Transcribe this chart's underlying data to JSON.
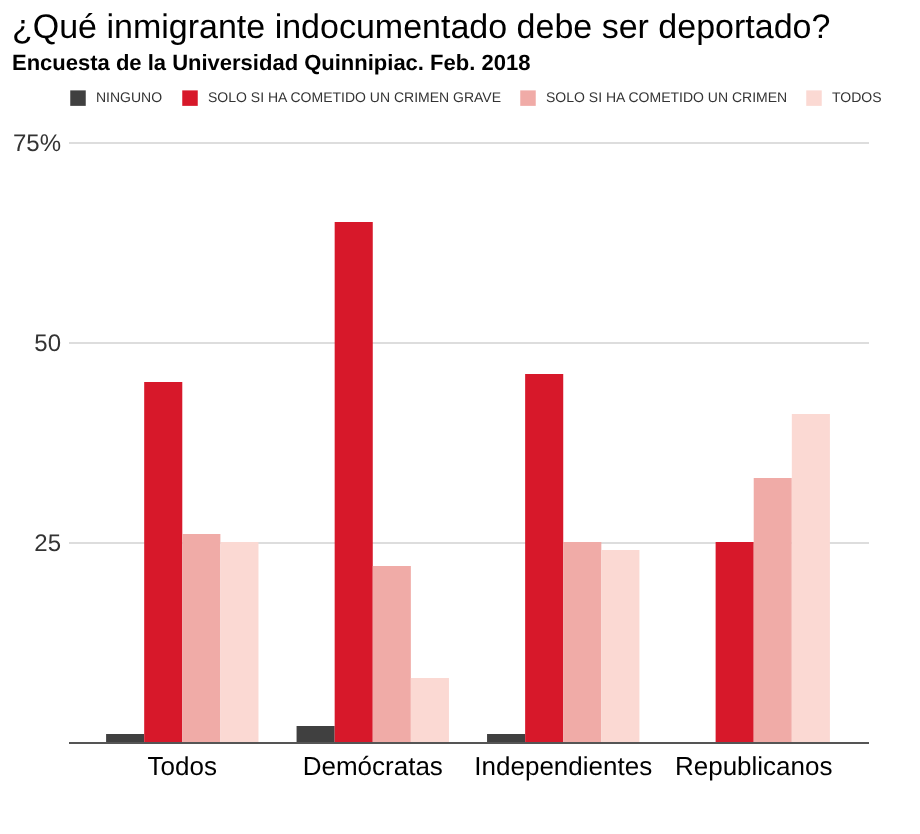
{
  "chart_data": {
    "type": "bar",
    "title": "¿Qué inmigrante indocumentado debe ser deportado?",
    "subtitle": "Encuesta de la Universidad Quinnipiac. Feb. 2018",
    "categories": [
      "Todos",
      "Demócratas",
      "Independientes",
      "Republicanos"
    ],
    "series": [
      {
        "name": "NINGUNO",
        "color": "#404040",
        "values": [
          1,
          2,
          1,
          0
        ]
      },
      {
        "name": "SOLO SI HA COMETIDO UN CRIMEN GRAVE",
        "color": "#d7182a",
        "values": [
          45,
          65,
          46,
          25
        ]
      },
      {
        "name": "SOLO SI HA COMETIDO UN CRIMEN",
        "color": "#f0aba7",
        "values": [
          26,
          22,
          25,
          33
        ]
      },
      {
        "name": "TODOS",
        "color": "#fbd9d3",
        "values": [
          25,
          8,
          24,
          41
        ]
      }
    ],
    "ylim": [
      0,
      75
    ],
    "yticks": [
      25,
      50,
      {
        "value": 75,
        "label": "75%"
      }
    ],
    "grid": "y",
    "legend": "top"
  }
}
